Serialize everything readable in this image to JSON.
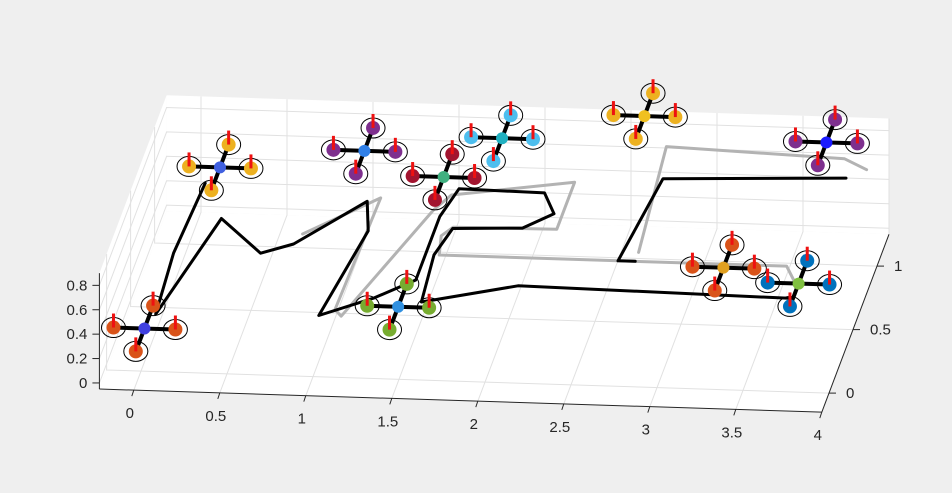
{
  "chart_data": {
    "type": "line",
    "title": "",
    "xlabel": "",
    "ylabel": "",
    "zlabel": "",
    "grid": true,
    "xlim": [
      -0.2,
      4
    ],
    "ylim": [
      -0.15,
      1.25
    ],
    "zlim": [
      -0.05,
      0.9
    ],
    "x_ticks": [
      "0",
      "0.5",
      "1",
      "1.5",
      "2",
      "2.5",
      "3",
      "3.5",
      "4"
    ],
    "y_ticks": [
      "0",
      "0.5",
      "1"
    ],
    "z_ticks": [
      "0",
      "0.2",
      "0.4",
      "0.6",
      "0.8"
    ],
    "series": [
      {
        "style": "black",
        "color": "#000000",
        "points": [
          [
            0.08,
            1.05
          ],
          [
            0.05,
            0.5
          ],
          [
            0.08,
            0.02
          ],
          [
            0.25,
            0.78
          ],
          [
            0.55,
            0.52
          ],
          [
            0.72,
            0.6
          ],
          [
            1.05,
            0.95
          ],
          [
            1.12,
            0.72
          ],
          [
            1.02,
            0.05
          ],
          [
            1.3,
            0.2
          ],
          [
            1.5,
            0.35
          ],
          [
            1.5,
            0.85
          ],
          [
            1.55,
            1.07
          ],
          [
            2.05,
            1.06
          ],
          [
            2.15,
            0.9
          ],
          [
            2.0,
            0.78
          ],
          [
            1.6,
            0.76
          ],
          [
            1.55,
            0.55
          ],
          [
            1.58,
            0.18
          ],
          [
            2.1,
            0.33
          ],
          [
            3.7,
            0.3
          ]
        ]
      },
      {
        "style": "black",
        "color": "#000000",
        "points": [
          [
            2.72,
            0.55
          ],
          [
            2.62,
            0.55
          ],
          [
            2.7,
            1.2
          ],
          [
            3.75,
            1.25
          ]
        ]
      },
      {
        "style": "gray",
        "color": "#b3b3b3",
        "points": [
          [
            0.75,
            0.68
          ],
          [
            1.12,
            0.98
          ],
          [
            1.1,
            0.1
          ],
          [
            1.15,
            0.05
          ],
          [
            1.45,
            0.9
          ],
          [
            1.52,
            1.02
          ],
          [
            2.2,
            1.15
          ],
          [
            2.2,
            0.78
          ],
          [
            1.6,
            0.77
          ],
          [
            1.55,
            0.7
          ],
          [
            1.58,
            0.55
          ],
          [
            2.62,
            0.55
          ],
          [
            3.6,
            0.55
          ],
          [
            3.7,
            0.4
          ]
        ]
      },
      {
        "style": "gray",
        "color": "#b3b3b3",
        "points": [
          [
            2.72,
            0.62
          ],
          [
            2.65,
            1.45
          ],
          [
            3.7,
            1.4
          ],
          [
            3.85,
            1.32
          ]
        ]
      }
    ],
    "quadrotors": [
      {
        "center": [
          0.02,
          0.0,
          0.3
        ],
        "hub_color": "#4040e0",
        "prop_colors": [
          "#d95319",
          "#d95319",
          "#d95319",
          "#d95319"
        ]
      },
      {
        "center": [
          0.25,
          0.75,
          0.85
        ],
        "hub_color": "#4060e0",
        "prop_colors": [
          "#edb120",
          "#edb120",
          "#edb120",
          "#edb120"
        ]
      },
      {
        "center": [
          1.07,
          0.82,
          0.95
        ],
        "hub_color": "#3080e8",
        "prop_colors": [
          "#7e2f8e",
          "#7e2f8e",
          "#7e2f8e",
          "#7e2f8e"
        ]
      },
      {
        "center": [
          1.47,
          0.09,
          0.45
        ],
        "hub_color": "#3090e0",
        "prop_colors": [
          "#77ac30",
          "#77ac30",
          "#77ac30",
          "#77ac30"
        ]
      },
      {
        "center": [
          1.55,
          0.75,
          0.83
        ],
        "hub_color": "#40b080",
        "prop_colors": [
          "#a2142f",
          "#a2142f",
          "#a2142f",
          "#a2142f"
        ]
      },
      {
        "center": [
          1.82,
          1.0,
          0.9
        ],
        "hub_color": "#20b0c0",
        "prop_colors": [
          "#4dbeee",
          "#4dbeee",
          "#4dbeee",
          "#4dbeee"
        ]
      },
      {
        "center": [
          2.55,
          1.35,
          0.75
        ],
        "hub_color": "#f0c020",
        "prop_colors": [
          "#edb120",
          "#edb120",
          "#edb120",
          "#edb120"
        ]
      },
      {
        "center": [
          3.28,
          0.38,
          0.55
        ],
        "hub_color": "#e0a020",
        "prop_colors": [
          "#d95319",
          "#d95319",
          "#d95319",
          "#d95319"
        ]
      },
      {
        "center": [
          3.6,
          1.38,
          0.55
        ],
        "hub_color": "#1a1aff",
        "prop_colors": [
          "#7e2f8e",
          "#7e2f8e",
          "#7e2f8e",
          "#7e2f8e"
        ]
      },
      {
        "center": [
          3.72,
          0.37,
          0.45
        ],
        "hub_color": "#80c040",
        "prop_colors": [
          "#0072bd",
          "#0072bd",
          "#0072bd",
          "#0072bd"
        ]
      }
    ]
  }
}
